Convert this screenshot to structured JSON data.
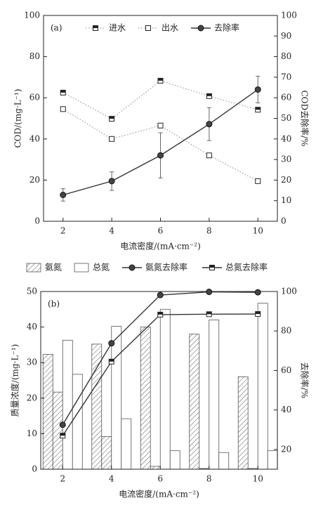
{
  "chart_data": [
    {
      "type": "line",
      "label": "(a)",
      "x": [
        2,
        4,
        6,
        8,
        10
      ],
      "xlim": [
        1.2,
        10.8
      ],
      "xticks": [
        2,
        4,
        6,
        8,
        10
      ],
      "ylim": [
        0,
        100
      ],
      "yticks": [
        0,
        20,
        40,
        60,
        80,
        100
      ],
      "y2lim": [
        0,
        100
      ],
      "y2ticks": [
        0,
        10,
        20,
        30,
        40,
        50,
        60,
        70,
        80,
        90,
        100
      ],
      "xlabel": "电流密度/(mA·cm⁻²)",
      "ylabel": "COD/(mg·L⁻¹)",
      "y2label": "COD去除率/%",
      "legend": "top",
      "series": [
        {
          "name": "进水",
          "color": "#888888",
          "linestyle": "dotted",
          "marker": "half-square",
          "values": [
            62.5,
            49.8,
            68.3,
            60.8,
            54.2
          ]
        },
        {
          "name": "出水",
          "color": "#888888",
          "linestyle": "dotted",
          "marker": "open-square",
          "values": [
            54.5,
            40,
            46.5,
            32,
            19.5
          ]
        },
        {
          "name": "去除率",
          "color": "#333333",
          "linestyle": "solid",
          "marker": "circle",
          "axis": "y2",
          "values": [
            12.8,
            19.5,
            32,
            47.2,
            64
          ],
          "errors": [
            3,
            4.5,
            11,
            8,
            6.5
          ]
        }
      ]
    },
    {
      "type": "bar",
      "label": "(b)",
      "x": [
        2,
        4,
        6,
        8,
        10
      ],
      "xlim": [
        1.1,
        10.8
      ],
      "xticks": [
        2,
        4,
        6,
        8,
        10
      ],
      "ylim": [
        0,
        50
      ],
      "yticks": [
        0,
        10,
        20,
        30,
        40,
        50
      ],
      "y2lim": [
        10,
        100
      ],
      "y2ticks": [
        20,
        40,
        60,
        80,
        100
      ],
      "xlabel": "电流密度/(mA·cm⁻²)",
      "ylabel": "质量浓度/(mg·L⁻¹)",
      "y2label": "去除率/%",
      "legend": "above",
      "series": [
        {
          "name": "氨氮",
          "hatch": true,
          "color": "#555555",
          "values": [
            32.3,
            35.2,
            40,
            38,
            26
          ]
        },
        {
          "hatch": true,
          "color": "#555555",
          "values": [
            21.7,
            9.2,
            0.8,
            0.2,
            0.2
          ]
        },
        {
          "name": "总氮",
          "hatch": false,
          "color": "#555555",
          "values": [
            36.3,
            40.2,
            45,
            42,
            46.7
          ]
        },
        {
          "hatch": false,
          "color": "#555555",
          "values": [
            26.7,
            14.2,
            5.2,
            4.7,
            5.2
          ]
        },
        {
          "name": "氨氮去除率",
          "type": "line",
          "axis": "y2",
          "color": "#333333",
          "linestyle": "solid",
          "marker": "circle",
          "values": [
            32.5,
            73.8,
            98.2,
            99.8,
            99.6
          ]
        },
        {
          "name": "总氮去除率",
          "type": "line",
          "axis": "y2",
          "color": "#333333",
          "linestyle": "solid",
          "marker": "half-square",
          "values": [
            27,
            64.5,
            88.3,
            88.5,
            88.6
          ]
        }
      ]
    }
  ]
}
